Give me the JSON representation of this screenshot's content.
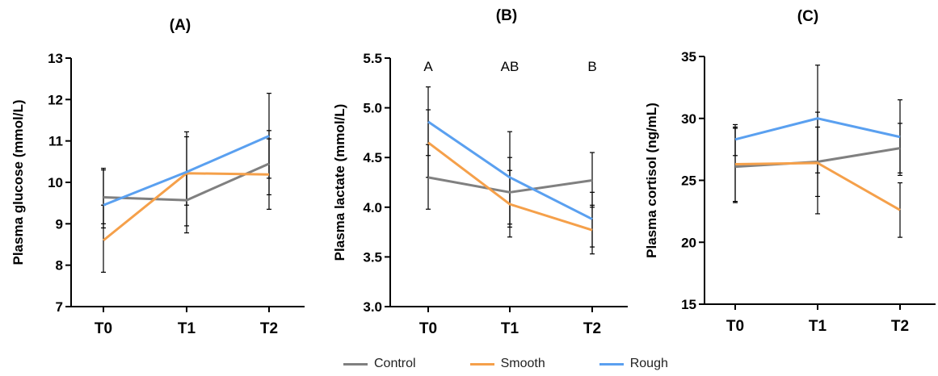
{
  "colors": {
    "Control": "#808080",
    "Smooth": "#F5A04A",
    "Rough": "#5AA0F0"
  },
  "legend": [
    {
      "name": "Control",
      "color": "#808080"
    },
    {
      "name": "Smooth",
      "color": "#F5A04A"
    },
    {
      "name": "Rough",
      "color": "#5AA0F0"
    }
  ],
  "chart_data": [
    {
      "type": "line",
      "title": "(A)",
      "ylabel": "Plasma glucose (mmol/L)",
      "categories": [
        "T0",
        "T1",
        "T2"
      ],
      "ylim": [
        7,
        13
      ],
      "yticks": [
        7,
        8,
        9,
        10,
        11,
        12,
        13
      ],
      "series": [
        {
          "name": "Control",
          "values": [
            9.64,
            9.57,
            10.45
          ],
          "error_low": [
            9.0,
            8.95,
            9.7
          ],
          "error_high": [
            10.3,
            10.2,
            11.25
          ]
        },
        {
          "name": "Smooth",
          "values": [
            8.6,
            10.22,
            10.19
          ],
          "error_low": [
            7.83,
            9.45,
            9.35
          ],
          "error_high": [
            9.45,
            11.1,
            11.05
          ]
        },
        {
          "name": "Rough",
          "values": [
            9.45,
            10.25,
            11.12
          ],
          "error_low": [
            8.9,
            8.78,
            10.1
          ],
          "error_high": [
            10.34,
            11.22,
            12.15
          ]
        }
      ]
    },
    {
      "type": "line",
      "title": "(B)",
      "ylabel": "Plasma lactate (mmol/L)",
      "categories": [
        "T0",
        "T1",
        "T2"
      ],
      "ylim": [
        3.0,
        5.5
      ],
      "yticks": [
        "3.0",
        "3.5",
        "4.0",
        "4.5",
        "5.0",
        "5.5"
      ],
      "annotations": [
        "A",
        "AB",
        "B"
      ],
      "series": [
        {
          "name": "Control",
          "values": [
            4.3,
            4.15,
            4.27
          ],
          "error_low": [
            3.98,
            3.8,
            4.0
          ],
          "error_high": [
            4.63,
            4.5,
            4.55
          ]
        },
        {
          "name": "Smooth",
          "values": [
            4.65,
            4.03,
            3.77
          ],
          "error_low": [
            4.3,
            3.7,
            3.53
          ],
          "error_high": [
            4.98,
            4.37,
            4.02
          ]
        },
        {
          "name": "Rough",
          "values": [
            4.86,
            4.3,
            3.88
          ],
          "error_low": [
            4.52,
            3.83,
            3.6
          ],
          "error_high": [
            5.21,
            4.76,
            4.15
          ]
        }
      ]
    },
    {
      "type": "line",
      "title": "(C)",
      "ylabel": "Plasma cortisol (ng/mL)",
      "categories": [
        "T0",
        "T1",
        "T2"
      ],
      "ylim": [
        15,
        35
      ],
      "yticks": [
        15,
        20,
        25,
        30,
        35
      ],
      "series": [
        {
          "name": "Control",
          "values": [
            26.1,
            26.5,
            27.6
          ],
          "error_low": [
            23.3,
            23.7,
            25.6
          ],
          "error_high": [
            29.2,
            29.3,
            29.6
          ]
        },
        {
          "name": "Smooth",
          "values": [
            26.3,
            26.4,
            22.6
          ],
          "error_low": [
            23.2,
            22.3,
            20.4
          ],
          "error_high": [
            29.3,
            30.5,
            24.8
          ]
        },
        {
          "name": "Rough",
          "values": [
            28.3,
            30.0,
            28.5
          ],
          "error_low": [
            27.0,
            25.6,
            25.4
          ],
          "error_high": [
            29.5,
            34.3,
            31.5
          ]
        }
      ]
    }
  ]
}
